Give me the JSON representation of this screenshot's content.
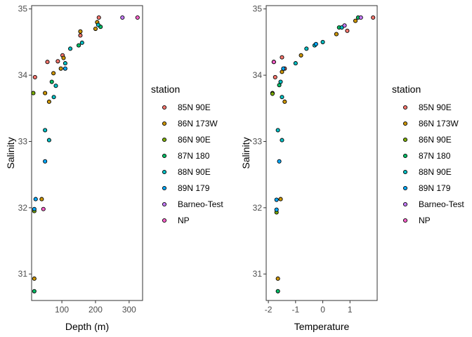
{
  "legend": {
    "title": "station",
    "entries": [
      {
        "label": "85N 90E",
        "color": "#F8766D"
      },
      {
        "label": "86N 173W",
        "color": "#CD9600"
      },
      {
        "label": "86N 90E",
        "color": "#7CAE00"
      },
      {
        "label": "87N 180",
        "color": "#00BE67"
      },
      {
        "label": "88N 90E",
        "color": "#00BFC4"
      },
      {
        "label": "89N 179",
        "color": "#00A9FF"
      },
      {
        "label": "Barneo-Test",
        "color": "#C77CFF"
      },
      {
        "label": "NP",
        "color": "#FF61CC"
      }
    ]
  },
  "chart_data": [
    {
      "type": "scatter",
      "xlabel": "Depth (m)",
      "ylabel": "Salinity",
      "xlim": [
        10,
        340
      ],
      "ylim": [
        30.6,
        35.05
      ],
      "xticks": [
        100,
        200,
        300
      ],
      "yticks": [
        31,
        32,
        33,
        34,
        35
      ],
      "points": [
        {
          "x": 20,
          "y": 33.97,
          "s": "85N 90E"
        },
        {
          "x": 57,
          "y": 34.2,
          "s": "85N 90E"
        },
        {
          "x": 88,
          "y": 34.21,
          "s": "85N 90E"
        },
        {
          "x": 102,
          "y": 34.3,
          "s": "85N 90E"
        },
        {
          "x": 155,
          "y": 34.6,
          "s": "85N 90E"
        },
        {
          "x": 210,
          "y": 34.87,
          "s": "85N 90E"
        },
        {
          "x": 18,
          "y": 30.93,
          "s": "86N 173W"
        },
        {
          "x": 40,
          "y": 32.13,
          "s": "86N 173W"
        },
        {
          "x": 50,
          "y": 33.73,
          "s": "86N 173W"
        },
        {
          "x": 62,
          "y": 33.6,
          "s": "86N 173W"
        },
        {
          "x": 75,
          "y": 34.03,
          "s": "86N 173W"
        },
        {
          "x": 97,
          "y": 34.1,
          "s": "86N 173W"
        },
        {
          "x": 105,
          "y": 34.26,
          "s": "86N 173W"
        },
        {
          "x": 155,
          "y": 34.66,
          "s": "86N 173W"
        },
        {
          "x": 200,
          "y": 34.7,
          "s": "86N 173W"
        },
        {
          "x": 205,
          "y": 34.8,
          "s": "86N 173W"
        },
        {
          "x": 15,
          "y": 33.73,
          "s": "86N 90E"
        },
        {
          "x": 18,
          "y": 31.95,
          "s": "86N 90E"
        },
        {
          "x": 18,
          "y": 30.74,
          "s": "87N 180"
        },
        {
          "x": 70,
          "y": 33.9,
          "s": "87N 180"
        },
        {
          "x": 150,
          "y": 34.45,
          "s": "87N 180"
        },
        {
          "x": 215,
          "y": 34.73,
          "s": "87N 180"
        },
        {
          "x": 50,
          "y": 33.17,
          "s": "88N 90E"
        },
        {
          "x": 62,
          "y": 33.02,
          "s": "88N 90E"
        },
        {
          "x": 76,
          "y": 33.67,
          "s": "88N 90E"
        },
        {
          "x": 82,
          "y": 33.84,
          "s": "88N 90E"
        },
        {
          "x": 110,
          "y": 34.18,
          "s": "88N 90E"
        },
        {
          "x": 125,
          "y": 34.4,
          "s": "88N 90E"
        },
        {
          "x": 160,
          "y": 34.49,
          "s": "88N 90E"
        },
        {
          "x": 208,
          "y": 34.76,
          "s": "88N 90E"
        },
        {
          "x": 22,
          "y": 32.13,
          "s": "89N 179"
        },
        {
          "x": 18,
          "y": 31.98,
          "s": "89N 179"
        },
        {
          "x": 50,
          "y": 32.7,
          "s": "89N 179"
        },
        {
          "x": 110,
          "y": 34.1,
          "s": "89N 179"
        },
        {
          "x": 280,
          "y": 34.87,
          "s": "Barneo-Test"
        },
        {
          "x": 325,
          "y": 34.87,
          "s": "NP"
        },
        {
          "x": 45,
          "y": 31.98,
          "s": "NP"
        }
      ]
    },
    {
      "type": "scatter",
      "xlabel": "Temperature",
      "ylabel": "Salinity",
      "xlim": [
        -2.08,
        2.0
      ],
      "ylim": [
        30.6,
        35.05
      ],
      "xticks": [
        -2,
        -1,
        0,
        1
      ],
      "yticks": [
        31,
        32,
        33,
        34,
        35
      ],
      "points": [
        {
          "x": -1.8,
          "y": 34.2,
          "s": "85N 90E"
        },
        {
          "x": -1.75,
          "y": 33.97,
          "s": "85N 90E"
        },
        {
          "x": -1.5,
          "y": 34.27,
          "s": "85N 90E"
        },
        {
          "x": -1.4,
          "y": 34.1,
          "s": "85N 90E"
        },
        {
          "x": 0.9,
          "y": 34.67,
          "s": "85N 90E"
        },
        {
          "x": 1.85,
          "y": 34.87,
          "s": "85N 90E"
        },
        {
          "x": -1.65,
          "y": 30.93,
          "s": "86N 173W"
        },
        {
          "x": -1.55,
          "y": 32.13,
          "s": "86N 173W"
        },
        {
          "x": -1.85,
          "y": 33.73,
          "s": "86N 173W"
        },
        {
          "x": -1.4,
          "y": 33.6,
          "s": "86N 173W"
        },
        {
          "x": -1.5,
          "y": 34.05,
          "s": "86N 173W"
        },
        {
          "x": -0.8,
          "y": 34.3,
          "s": "86N 173W"
        },
        {
          "x": 0.5,
          "y": 34.62,
          "s": "86N 173W"
        },
        {
          "x": 1.2,
          "y": 34.82,
          "s": "86N 173W"
        },
        {
          "x": -1.85,
          "y": 33.72,
          "s": "86N 90E"
        },
        {
          "x": -1.7,
          "y": 31.93,
          "s": "86N 90E"
        },
        {
          "x": -1.65,
          "y": 30.74,
          "s": "87N 180"
        },
        {
          "x": -1.6,
          "y": 33.85,
          "s": "87N 180"
        },
        {
          "x": 0.6,
          "y": 34.72,
          "s": "87N 180"
        },
        {
          "x": 1.3,
          "y": 34.87,
          "s": "87N 180"
        },
        {
          "x": -1.65,
          "y": 33.17,
          "s": "88N 90E"
        },
        {
          "x": -1.5,
          "y": 33.02,
          "s": "88N 90E"
        },
        {
          "x": -1.5,
          "y": 33.67,
          "s": "88N 90E"
        },
        {
          "x": -1.55,
          "y": 33.9,
          "s": "88N 90E"
        },
        {
          "x": -1.0,
          "y": 34.18,
          "s": "88N 90E"
        },
        {
          "x": -0.6,
          "y": 34.4,
          "s": "88N 90E"
        },
        {
          "x": -0.3,
          "y": 34.45,
          "s": "88N 90E"
        },
        {
          "x": 0.0,
          "y": 34.5,
          "s": "88N 90E"
        },
        {
          "x": 0.7,
          "y": 34.72,
          "s": "88N 90E"
        },
        {
          "x": -1.7,
          "y": 32.12,
          "s": "89N 179"
        },
        {
          "x": -1.7,
          "y": 31.97,
          "s": "89N 179"
        },
        {
          "x": -1.6,
          "y": 32.7,
          "s": "89N 179"
        },
        {
          "x": -1.45,
          "y": 34.1,
          "s": "89N 179"
        },
        {
          "x": -0.25,
          "y": 34.47,
          "s": "89N 179"
        },
        {
          "x": 0.8,
          "y": 34.75,
          "s": "Barneo-Test"
        },
        {
          "x": 1.4,
          "y": 34.87,
          "s": "Barneo-Test"
        },
        {
          "x": -1.8,
          "y": 34.2,
          "s": "NP"
        }
      ]
    }
  ]
}
